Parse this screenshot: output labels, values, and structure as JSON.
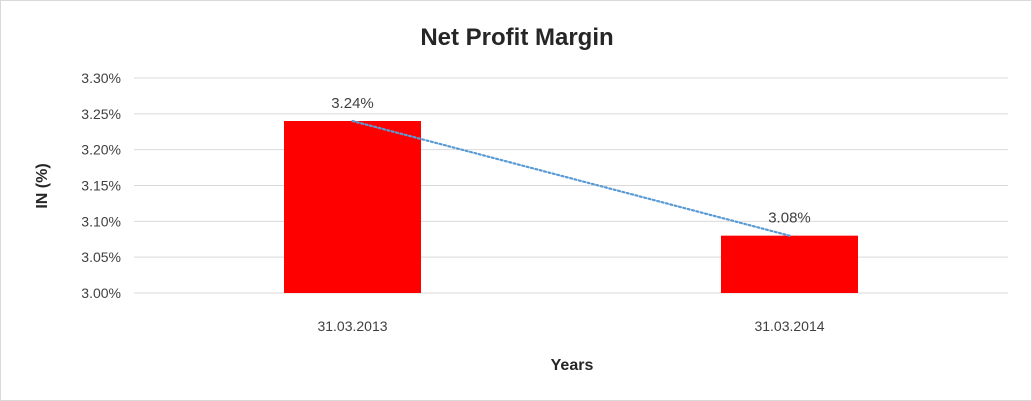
{
  "chart_data": {
    "type": "bar",
    "title": "Net Profit Margin",
    "xlabel": "Years",
    "ylabel": "IN (%)",
    "categories": [
      "31.03.2013",
      "31.03.2014"
    ],
    "values": [
      3.24,
      3.08
    ],
    "data_labels": [
      "3.24%",
      "3.08%"
    ],
    "ylim": [
      3.0,
      3.3
    ],
    "yticks": [
      3.0,
      3.05,
      3.1,
      3.15,
      3.2,
      3.25,
      3.3
    ],
    "ytick_labels": [
      "3.00%",
      "3.05%",
      "3.10%",
      "3.15%",
      "3.20%",
      "3.25%",
      "3.30%"
    ],
    "grid": true,
    "trendline": "linear, dotted",
    "colors": {
      "bar": "#ff0000",
      "trendline": "#5b9bd5",
      "grid": "#d9d9d9"
    }
  }
}
